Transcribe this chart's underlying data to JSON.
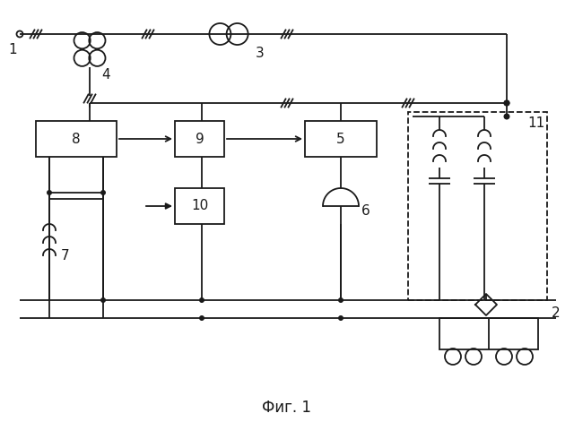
{
  "title": "Фиг. 1",
  "bg_color": "#ffffff",
  "line_color": "#1a1a1a",
  "fig_width": 6.4,
  "fig_height": 4.71,
  "dpi": 100
}
